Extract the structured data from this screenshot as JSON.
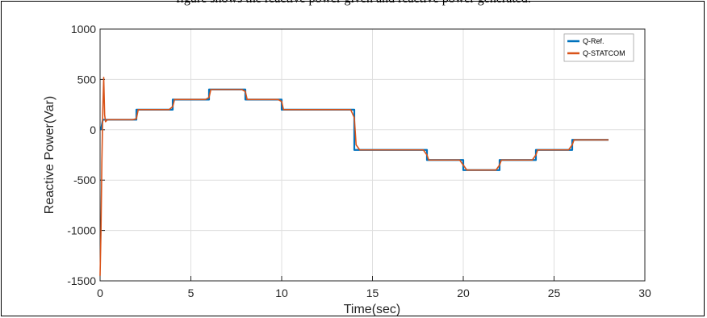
{
  "caption": {
    "text": "figure shows the reactive power given and reactive power generated."
  },
  "chart_data": {
    "type": "line",
    "title": "",
    "xlabel": "Time(sec)",
    "ylabel": "Reactive Power(Var)",
    "xlim": [
      0,
      30
    ],
    "ylim": [
      -1500,
      1000
    ],
    "xticks": [
      0,
      5,
      10,
      15,
      20,
      25,
      30
    ],
    "yticks": [
      1000,
      500,
      0,
      -500,
      -1000,
      -1500
    ],
    "grid": true,
    "legend_position": "top-right",
    "series": [
      {
        "name": "Q-Ref.",
        "color": "#0072BD",
        "x": [
          0.05,
          0.15,
          0.2,
          2.0,
          2.0,
          4.0,
          4.0,
          6.0,
          6.0,
          8.0,
          8.0,
          10.0,
          10.0,
          14.0,
          14.0,
          18.0,
          18.0,
          20.0,
          20.0,
          22.0,
          22.0,
          24.0,
          24.0,
          26.0,
          26.0,
          28.0
        ],
        "y": [
          0,
          100,
          100,
          100,
          200,
          200,
          300,
          300,
          400,
          400,
          300,
          300,
          200,
          200,
          -200,
          -200,
          -300,
          -300,
          -400,
          -400,
          -300,
          -300,
          -200,
          -200,
          -100,
          -100
        ]
      },
      {
        "name": "Q-STATCOM",
        "color": "#D95319",
        "x": [
          0.0,
          0.05,
          0.1,
          0.15,
          0.2,
          0.25,
          0.3,
          0.4,
          1.8,
          2.0,
          2.1,
          3.8,
          4.0,
          4.1,
          5.8,
          6.0,
          6.1,
          7.8,
          8.0,
          8.1,
          9.8,
          10.0,
          10.1,
          13.8,
          14.0,
          14.1,
          14.3,
          17.8,
          18.0,
          18.1,
          19.8,
          20.0,
          20.2,
          21.8,
          22.0,
          22.1,
          23.8,
          24.0,
          24.1,
          25.8,
          26.0,
          26.1,
          28.0
        ],
        "y": [
          -1450,
          -1000,
          -300,
          200,
          520,
          150,
          80,
          100,
          100,
          110,
          200,
          200,
          230,
          300,
          300,
          320,
          400,
          400,
          380,
          300,
          300,
          280,
          200,
          200,
          120,
          -150,
          -200,
          -200,
          -250,
          -300,
          -300,
          -350,
          -400,
          -400,
          -350,
          -300,
          -300,
          -250,
          -200,
          -200,
          -150,
          -100,
          -100
        ]
      }
    ]
  }
}
